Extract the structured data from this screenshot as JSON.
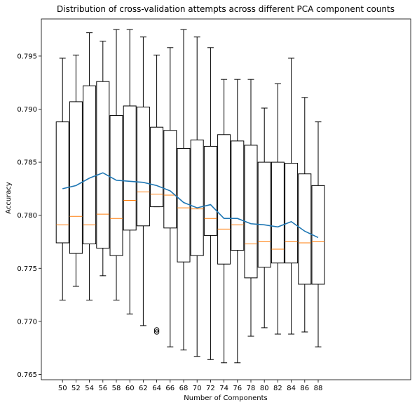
{
  "chart_data": {
    "type": "box",
    "title": "Distribution of cross-validation attempts across different PCA component counts",
    "xlabel": "Number of Components",
    "ylabel": "Accuracy",
    "ylim": [
      0.7645,
      0.7985
    ],
    "yticks": [
      "0.765",
      "0.770",
      "0.775",
      "0.780",
      "0.785",
      "0.790",
      "0.795"
    ],
    "categories": [
      "50",
      "52",
      "54",
      "56",
      "58",
      "60",
      "62",
      "64",
      "66",
      "68",
      "70",
      "72",
      "74",
      "76",
      "78",
      "80",
      "82",
      "84",
      "86",
      "88"
    ],
    "boxes": [
      {
        "whislo": 0.772,
        "q1": 0.7774,
        "med": 0.7791,
        "q3": 0.7888,
        "whishi": 0.7948
      },
      {
        "whislo": 0.7733,
        "q1": 0.7764,
        "med": 0.7799,
        "q3": 0.7907,
        "whishi": 0.7951
      },
      {
        "whislo": 0.772,
        "q1": 0.7773,
        "med": 0.7791,
        "q3": 0.7922,
        "whishi": 0.7972
      },
      {
        "whislo": 0.7743,
        "q1": 0.7769,
        "med": 0.7801,
        "q3": 0.7926,
        "whishi": 0.7964
      },
      {
        "whislo": 0.772,
        "q1": 0.7762,
        "med": 0.7797,
        "q3": 0.7894,
        "whishi": 0.7975
      },
      {
        "whislo": 0.7707,
        "q1": 0.7786,
        "med": 0.7814,
        "q3": 0.7903,
        "whishi": 0.7975
      },
      {
        "whislo": 0.7696,
        "q1": 0.779,
        "med": 0.7822,
        "q3": 0.7902,
        "whishi": 0.7968
      },
      {
        "whislo": 0.7808,
        "q1": 0.7808,
        "med": 0.782,
        "q3": 0.7883,
        "whishi": 0.7951
      },
      {
        "whislo": 0.7676,
        "q1": 0.7788,
        "med": 0.7819,
        "q3": 0.788,
        "whishi": 0.7958
      },
      {
        "whislo": 0.7673,
        "q1": 0.7756,
        "med": 0.7807,
        "q3": 0.7863,
        "whishi": 0.7975
      },
      {
        "whislo": 0.7667,
        "q1": 0.7762,
        "med": 0.7806,
        "q3": 0.7871,
        "whishi": 0.7968
      },
      {
        "whislo": 0.7664,
        "q1": 0.7781,
        "med": 0.7797,
        "q3": 0.7865,
        "whishi": 0.7958
      },
      {
        "whislo": 0.7661,
        "q1": 0.7754,
        "med": 0.7787,
        "q3": 0.7876,
        "whishi": 0.7928
      },
      {
        "whislo": 0.7661,
        "q1": 0.7767,
        "med": 0.7791,
        "q3": 0.787,
        "whishi": 0.7928
      },
      {
        "whislo": 0.7686,
        "q1": 0.7741,
        "med": 0.7773,
        "q3": 0.7866,
        "whishi": 0.7928
      },
      {
        "whislo": 0.7694,
        "q1": 0.7751,
        "med": 0.7775,
        "q3": 0.785,
        "whishi": 0.7901
      },
      {
        "whislo": 0.7688,
        "q1": 0.7755,
        "med": 0.7768,
        "q3": 0.785,
        "whishi": 0.7924
      },
      {
        "whislo": 0.7688,
        "q1": 0.7755,
        "med": 0.7775,
        "q3": 0.7849,
        "whishi": 0.7948
      },
      {
        "whislo": 0.769,
        "q1": 0.7735,
        "med": 0.7774,
        "q3": 0.7839,
        "whishi": 0.7911
      },
      {
        "whislo": 0.7676,
        "q1": 0.7735,
        "med": 0.7775,
        "q3": 0.7828,
        "whishi": 0.7888
      }
    ],
    "outliers": [
      {
        "category": "64",
        "values": [
          0.769,
          0.7692
        ]
      }
    ],
    "mean_line": {
      "x": [
        "50",
        "52",
        "54",
        "56",
        "58",
        "60",
        "62",
        "64",
        "66",
        "68",
        "70",
        "72",
        "74",
        "76",
        "78",
        "80",
        "82",
        "84",
        "86",
        "88"
      ],
      "y": [
        0.7825,
        0.7828,
        0.7835,
        0.784,
        0.7833,
        0.7832,
        0.7831,
        0.7828,
        0.7823,
        0.7812,
        0.7807,
        0.781,
        0.7797,
        0.7797,
        0.7792,
        0.7791,
        0.7789,
        0.7794,
        0.7785,
        0.7779
      ]
    },
    "colors": {
      "box": "#000000",
      "median": "#ff7f0e",
      "mean_line": "#1f77b4"
    },
    "grid": false,
    "legend": "none"
  }
}
